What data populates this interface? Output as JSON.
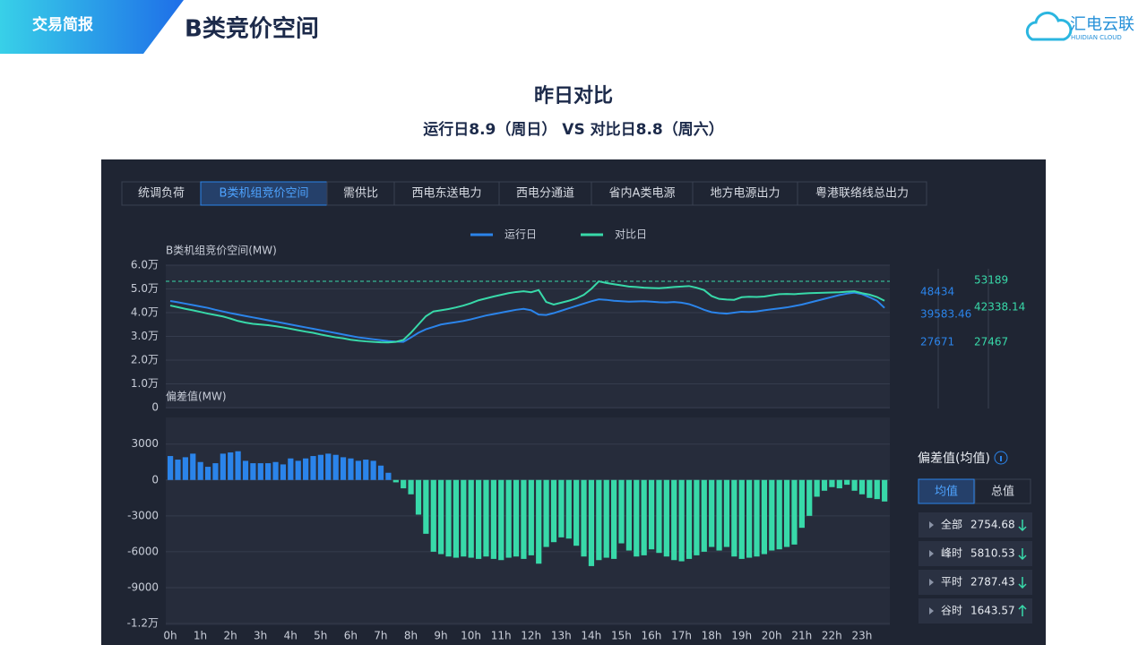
{
  "header": {
    "section": "交易简报",
    "title": "B类竞价空间",
    "logo": "汇电云联",
    "logo_sub": "HUIDIAN CLOUD"
  },
  "heading": {
    "title": "昨日对比",
    "subtitle": "运行日8.9（周日） VS 对比日8.8（周六）"
  },
  "tabs": [
    "统调负荷",
    "B类机组竞价空间",
    "需供比",
    "西电东送电力",
    "西电分通道",
    "省内A类电源",
    "地方电源出力",
    "粤港联络线总出力"
  ],
  "active_tab": 1,
  "chart_data": [
    {
      "type": "line",
      "ylabel": "B类机组竞价空间(MW)",
      "ylim": [
        0,
        60000
      ],
      "yticks": [
        0,
        {
          "value": 10000,
          "label": "1.0万"
        },
        {
          "value": 20000,
          "label": "2.0万"
        },
        {
          "value": 30000,
          "label": "3.0万"
        },
        {
          "value": 40000,
          "label": "4.0万"
        },
        {
          "value": 50000,
          "label": "5.0万"
        },
        {
          "value": 60000,
          "label": "6.0万"
        }
      ],
      "grid": true,
      "series": [
        {
          "name": "运行日",
          "color": "#2b84ea",
          "values": [
            44900,
            44400,
            43800,
            43200,
            42600,
            42000,
            41200,
            40500,
            39800,
            39200,
            38600,
            38000,
            37400,
            36800,
            36200,
            35600,
            35000,
            34400,
            33800,
            33200,
            32600,
            32000,
            31400,
            30800,
            30200,
            29600,
            29200,
            28800,
            28400,
            28000,
            27800,
            27671,
            29500,
            31500,
            33000,
            34000,
            35000,
            35500,
            36000,
            36500,
            37200,
            38000,
            38800,
            39400,
            40000,
            40600,
            41200,
            41600,
            41000,
            39200,
            39000,
            39800,
            40800,
            41800,
            42800,
            43800,
            44800,
            45600,
            45400,
            45000,
            44800,
            44600,
            44700,
            44800,
            44600,
            44400,
            44300,
            44500,
            44200,
            43600,
            42500,
            41200,
            40200,
            39800,
            39600,
            40000,
            40400,
            40300,
            40500,
            41000,
            41400,
            41800,
            42200,
            42800,
            43400,
            44200,
            45000,
            45800,
            46600,
            47400,
            48000,
            48434,
            47800,
            46500,
            45000,
            42000
          ]
        },
        {
          "name": "对比日",
          "color": "#38d9a9",
          "values": [
            43000,
            42300,
            41600,
            41000,
            40300,
            39600,
            39000,
            38400,
            37500,
            36500,
            35800,
            35300,
            35000,
            34700,
            34300,
            33800,
            33200,
            32600,
            32000,
            31500,
            30800,
            30200,
            29600,
            29200,
            28600,
            28200,
            27900,
            27700,
            27500,
            27467,
            27700,
            28500,
            31500,
            35000,
            38500,
            40500,
            41000,
            41500,
            42200,
            43000,
            44000,
            45200,
            46000,
            46800,
            47500,
            48200,
            48700,
            49000,
            48600,
            49500,
            44500,
            43400,
            44200,
            45000,
            46000,
            47500,
            50000,
            53189,
            52500,
            52000,
            51500,
            51000,
            50800,
            50500,
            50400,
            50300,
            50500,
            50800,
            51000,
            51200,
            50500,
            49500,
            47000,
            45800,
            45500,
            45400,
            46500,
            46700,
            46600,
            46800,
            47300,
            47800,
            47900,
            47800,
            48000,
            48200,
            48300,
            48400,
            48500,
            48600,
            48800,
            49000,
            48200,
            47600,
            46600,
            45000
          ]
        }
      ]
    },
    {
      "type": "bar",
      "ylabel": "偏差值(MW)",
      "ylim": [
        -12000,
        5000
      ],
      "yticks": [
        3000,
        0,
        -3000,
        -6000,
        -9000,
        {
          "value": -12000,
          "label": "-1.2万"
        }
      ],
      "grid": true,
      "positive_color": "#2b84ea",
      "negative_color": "#38d9a9",
      "categories": [
        "0h",
        null,
        null,
        null,
        "1h",
        null,
        null,
        null,
        "2h",
        null,
        null,
        null,
        "3h",
        null,
        null,
        null,
        "4h",
        null,
        null,
        null,
        "5h",
        null,
        null,
        null,
        "6h",
        null,
        null,
        null,
        "7h",
        null,
        null,
        null,
        "8h",
        null,
        null,
        null,
        "9h",
        null,
        null,
        null,
        "10h",
        null,
        null,
        null,
        "11h",
        null,
        null,
        null,
        "12h",
        null,
        null,
        null,
        "13h",
        null,
        null,
        null,
        "14h",
        null,
        null,
        null,
        "15h",
        null,
        null,
        null,
        "16h",
        null,
        null,
        null,
        "17h",
        null,
        null,
        null,
        "18h",
        null,
        null,
        null,
        "19h",
        null,
        null,
        null,
        "20h",
        null,
        null,
        null,
        "21h",
        null,
        null,
        null,
        "22h",
        null,
        null,
        null,
        "23h",
        null,
        null,
        null
      ],
      "values": [
        2000,
        1700,
        1900,
        2200,
        1500,
        1100,
        1400,
        2200,
        2300,
        2400,
        1600,
        1400,
        1400,
        1400,
        1500,
        1300,
        1800,
        1600,
        1800,
        2000,
        2100,
        2200,
        2100,
        1900,
        1800,
        1600,
        1700,
        1600,
        1200,
        600,
        -200,
        -700,
        -1200,
        -2900,
        -4500,
        -6000,
        -6200,
        -6400,
        -6500,
        -6400,
        -6500,
        -6600,
        -6400,
        -6600,
        -6700,
        -6500,
        -6400,
        -6600,
        -6300,
        -7000,
        -5600,
        -5200,
        -4800,
        -4900,
        -5500,
        -6400,
        -7200,
        -6700,
        -6500,
        -6600,
        -5300,
        -5900,
        -6400,
        -6300,
        -5800,
        -6100,
        -6400,
        -6700,
        -6800,
        -6600,
        -6300,
        -6000,
        -5600,
        -5900,
        -5600,
        -6400,
        -6600,
        -6500,
        -6400,
        -6200,
        -5900,
        -5800,
        -5600,
        -5400,
        -4000,
        -3000,
        -1400,
        -900,
        -600,
        -700,
        -400,
        -900,
        -1200,
        -1500,
        -1600,
        -1800
      ]
    }
  ],
  "stats": {
    "run": [
      48434,
      39583.46,
      27671
    ],
    "compare": [
      53189,
      42338.14,
      27467
    ]
  },
  "deviation_panel": {
    "title": "偏差值(均值)",
    "modes": [
      "均值",
      "总值"
    ],
    "active_mode": 0,
    "rows": [
      {
        "label": "全部",
        "value": 2754.68,
        "trend": "down"
      },
      {
        "label": "峰时",
        "value": 5810.53,
        "trend": "down"
      },
      {
        "label": "平时",
        "value": 2787.43,
        "trend": "down"
      },
      {
        "label": "谷时",
        "value": 1643.57,
        "trend": "up"
      }
    ]
  }
}
